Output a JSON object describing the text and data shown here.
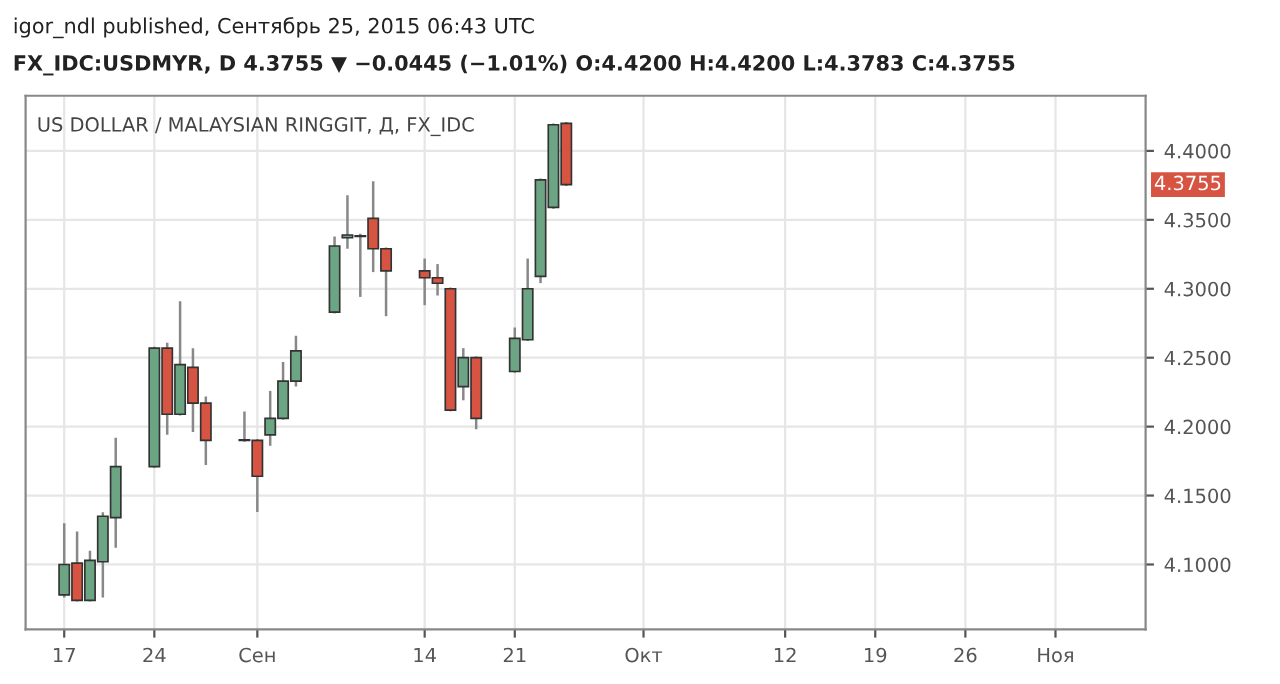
{
  "chart_data": {
    "type": "candlestick",
    "title": "US DOLLAR / MALAYSIAN RINGGIT, Д, FX_IDC",
    "annotations": [
      "igor_ndl published, Сентябрь 25, 2015 06:43 UTC",
      "FX_IDC:USDMYR, D 4.3755 ▼ −0.0445 (−1.01%) O:4.4200 H:4.4200 L:4.3783 C:4.3755",
      {
        "text": "4.3755",
        "y": 4.3755
      }
    ],
    "x": [
      "2015-08-17",
      "2015-08-18",
      "2015-08-19",
      "2015-08-20",
      "2015-08-21",
      "2015-08-24",
      "2015-08-25",
      "2015-08-26",
      "2015-08-27",
      "2015-08-28",
      "2015-08-31",
      "2015-09-01",
      "2015-09-02",
      "2015-09-03",
      "2015-09-04",
      "2015-09-07",
      "2015-09-08",
      "2015-09-09",
      "2015-09-10",
      "2015-09-11",
      "2015-09-14",
      "2015-09-15",
      "2015-09-16",
      "2015-09-17",
      "2015-09-18",
      "2015-09-21",
      "2015-09-22",
      "2015-09-23",
      "2015-09-24",
      "2015-09-25"
    ],
    "ohlc": [
      [
        4.078,
        4.129,
        4.077,
        4.1
      ],
      [
        4.101,
        4.123,
        4.074,
        4.074
      ],
      [
        4.074,
        4.109,
        4.074,
        4.103
      ],
      [
        4.102,
        4.137,
        4.077,
        4.135
      ],
      [
        4.134,
        4.191,
        4.113,
        4.171
      ],
      [
        4.171,
        4.257,
        4.171,
        4.257
      ],
      [
        4.257,
        4.26,
        4.195,
        4.209
      ],
      [
        4.209,
        4.29,
        4.209,
        4.245
      ],
      [
        4.243,
        4.256,
        4.197,
        4.217
      ],
      [
        4.217,
        4.221,
        4.173,
        4.19
      ],
      [
        4.19,
        4.21,
        4.19,
        4.19
      ],
      [
        4.19,
        4.19,
        4.139,
        4.164
      ],
      [
        4.194,
        4.225,
        4.187,
        4.206
      ],
      [
        4.206,
        4.246,
        4.206,
        4.233
      ],
      [
        4.233,
        4.265,
        4.23,
        4.255
      ],
      [
        4.283,
        4.337,
        4.283,
        4.331
      ],
      [
        4.337,
        4.367,
        4.33,
        4.339
      ],
      [
        4.338,
        4.339,
        4.295,
        4.338
      ],
      [
        4.351,
        4.377,
        4.313,
        4.329
      ],
      [
        4.329,
        4.329,
        4.281,
        4.313
      ],
      [
        4.313,
        4.321,
        4.289,
        4.308
      ],
      [
        4.308,
        4.317,
        4.296,
        4.304
      ],
      [
        4.3,
        4.3,
        4.212,
        4.212
      ],
      [
        4.229,
        4.256,
        4.22,
        4.25
      ],
      [
        4.25,
        4.25,
        4.199,
        4.206
      ],
      [
        4.24,
        4.271,
        4.24,
        4.264
      ],
      [
        4.263,
        4.321,
        4.263,
        4.3
      ],
      [
        4.309,
        4.379,
        4.305,
        4.379
      ],
      [
        4.359,
        4.419,
        4.359,
        4.419
      ],
      [
        4.42,
        4.42,
        4.3755,
        4.3755
      ]
    ],
    "colors": [
      "#6ba583",
      "#d75442",
      "#6ba583",
      "#6ba583",
      "#6ba583",
      "#6ba583",
      "#d75442",
      "#6ba583",
      "#d75442",
      "#d75442",
      "#6ba583",
      "#d75442",
      "#6ba583",
      "#6ba583",
      "#6ba583",
      "#6ba583",
      "#6ba583",
      "#6ba583",
      "#d75442",
      "#d75442",
      "#d75442",
      "#d75442",
      "#d75442",
      "#6ba583",
      "#d75442",
      "#6ba583",
      "#6ba583",
      "#6ba583",
      "#6ba583",
      "#d75442"
    ],
    "xlim": [
      "2015-08-14",
      "2015-11-09"
    ],
    "xticks": [
      {
        "value": "2015-08-17",
        "label": "17"
      },
      {
        "value": "2015-08-24",
        "label": "24"
      },
      {
        "value": "2015-09-01",
        "label": "Сен"
      },
      {
        "value": "2015-09-14",
        "label": "14"
      },
      {
        "value": "2015-09-21",
        "label": "21"
      },
      {
        "value": "2015-10-01",
        "label": "Окт"
      },
      {
        "value": "2015-10-12",
        "label": "12"
      },
      {
        "value": "2015-10-19",
        "label": "19"
      },
      {
        "value": "2015-10-26",
        "label": "26"
      },
      {
        "value": "2015-11-02",
        "label": "Ноя"
      }
    ],
    "ylim": [
      4.053,
      4.44
    ],
    "yticks": [
      {
        "value": 4.1,
        "label": "4.1000"
      },
      {
        "value": 4.15,
        "label": "4.1500"
      },
      {
        "value": 4.2,
        "label": "4.2000"
      },
      {
        "value": 4.25,
        "label": "4.2500"
      },
      {
        "value": 4.3,
        "label": "4.3000"
      },
      {
        "value": 4.35,
        "label": "4.3500"
      },
      {
        "value": 4.4,
        "label": "4.4000"
      }
    ],
    "grid": true
  }
}
